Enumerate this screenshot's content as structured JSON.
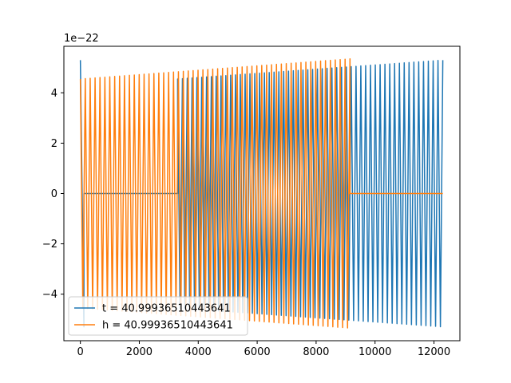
{
  "chart_data": {
    "type": "line",
    "title": "",
    "xlabel": "",
    "ylabel": "",
    "xlim": [
      -560,
      12880
    ],
    "ylim": [
      -5.85,
      5.85
    ],
    "y_scale_label": "1e−22",
    "x_ticks": [
      0,
      2000,
      4000,
      6000,
      8000,
      10000,
      12000
    ],
    "x_tick_labels": [
      "0",
      "2000",
      "4000",
      "6000",
      "8000",
      "10000",
      "12000"
    ],
    "y_ticks": [
      -4,
      -2,
      0,
      2,
      4
    ],
    "y_tick_labels": [
      "−4",
      "−2",
      "0",
      "2",
      "4"
    ],
    "grid": false,
    "legend_location": "lower-left",
    "series": [
      {
        "name": "t = 40.99936510443641",
        "color": "#1f77b4",
        "segments": [
          {
            "kind": "chirp",
            "x_start": 0,
            "x_end": 120,
            "amp_start": 5.3,
            "amp_end": 5.3,
            "half_cycles": 1
          },
          {
            "kind": "flat",
            "x_start": 120,
            "x_end": 3300,
            "value": 0
          },
          {
            "kind": "chirp",
            "x_start": 3300,
            "x_end": 12300,
            "amp_start": 4.55,
            "amp_end": 5.3,
            "half_cycles": 110
          }
        ]
      },
      {
        "name": "h = 40.99936510443641",
        "color": "#ff7f0e",
        "segments": [
          {
            "kind": "chirp",
            "x_start": 0,
            "x_end": 9150,
            "amp_start": 4.55,
            "amp_end": 5.35,
            "half_cycles": 110
          },
          {
            "kind": "flat",
            "x_start": 9150,
            "x_end": 12300,
            "value": 0
          }
        ]
      }
    ]
  }
}
